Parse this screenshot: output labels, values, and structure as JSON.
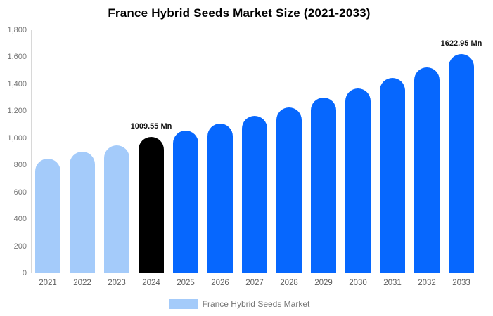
{
  "title": "France Hybrid Seeds Market Size (2021-2033)",
  "chart_data": {
    "type": "bar",
    "title": "France Hybrid Seeds Market Size (2021-2033)",
    "categories": [
      "2021",
      "2022",
      "2023",
      "2024",
      "2025",
      "2026",
      "2027",
      "2028",
      "2029",
      "2030",
      "2031",
      "2032",
      "2033"
    ],
    "values": [
      850,
      898,
      948,
      1009.55,
      1055,
      1110,
      1165,
      1228,
      1298,
      1368,
      1445,
      1525,
      1622.95
    ],
    "segments": [
      "historical",
      "historical",
      "historical",
      "base",
      "forecast",
      "forecast",
      "forecast",
      "forecast",
      "forecast",
      "forecast",
      "forecast",
      "forecast",
      "forecast"
    ],
    "segment_colors": {
      "historical": "#A4CBFA",
      "base": "#000000",
      "forecast": "#0667FE"
    },
    "point_labels": {
      "2024": "1009.55 Mn",
      "2033": "1622.95 Mn"
    },
    "xlabel": "",
    "ylabel": "",
    "ylim": [
      0,
      1800
    ],
    "ytick_step": 200,
    "ytick_labels": [
      "0",
      "200",
      "400",
      "600",
      "800",
      "1,000",
      "1,200",
      "1,400",
      "1,600",
      "1,800"
    ],
    "grid": false,
    "legend": {
      "position": "bottom",
      "items": [
        {
          "label": "France Hybrid Seeds Market",
          "color": "#A4CBFA"
        }
      ]
    }
  }
}
